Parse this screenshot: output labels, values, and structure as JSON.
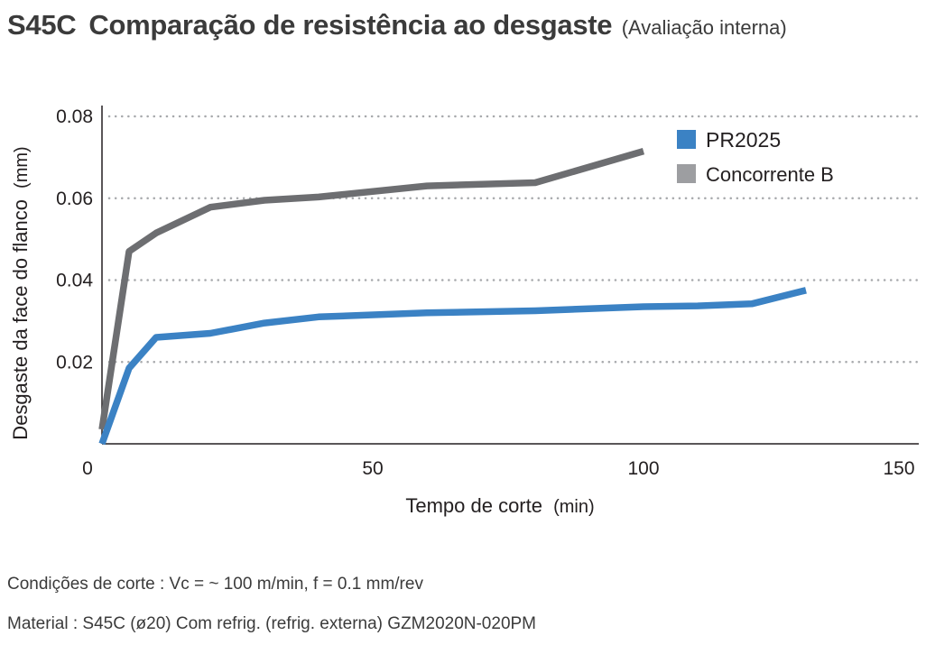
{
  "title": {
    "code": "S45C",
    "main": "Comparação de resistência ao desgaste",
    "sub": "(Avaliação interna)"
  },
  "chart_data": {
    "type": "line",
    "xlabel": "Tempo de corte",
    "xlabel_unit": "(min)",
    "ylabel": "Desgaste da face do flanco",
    "ylabel_unit": "(mm)",
    "xlim": [
      0,
      150
    ],
    "ylim": [
      0,
      0.08
    ],
    "x_ticks": [
      "0",
      "50",
      "100",
      "150"
    ],
    "x_tick_values": [
      0,
      50,
      100,
      150
    ],
    "y_ticks": [
      "0.02",
      "0.04",
      "0.06",
      "0.08"
    ],
    "y_tick_values": [
      0.02,
      0.04,
      0.06,
      0.08
    ],
    "grid": "horizontal dotted",
    "legend_position": "top-right",
    "series": [
      {
        "name": "PR2025",
        "color": "#3b82c4",
        "points": [
          [
            0,
            0
          ],
          [
            5,
            0.0185
          ],
          [
            10,
            0.026
          ],
          [
            20,
            0.027
          ],
          [
            30,
            0.0295
          ],
          [
            40,
            0.031
          ],
          [
            60,
            0.032
          ],
          [
            80,
            0.0325
          ],
          [
            100,
            0.0335
          ],
          [
            110,
            0.0337
          ],
          [
            120,
            0.0342
          ],
          [
            130,
            0.0375
          ]
        ]
      },
      {
        "name": "Concorrente B",
        "color": "#6d6e71",
        "legend_color": "#9d9ea1",
        "points": [
          [
            0,
            0.0035
          ],
          [
            5,
            0.047
          ],
          [
            10,
            0.0515
          ],
          [
            20,
            0.0578
          ],
          [
            30,
            0.0595
          ],
          [
            40,
            0.0603
          ],
          [
            60,
            0.063
          ],
          [
            80,
            0.0638
          ],
          [
            100,
            0.0715
          ]
        ]
      }
    ]
  },
  "notes": {
    "conditions": "Condições de corte : Vc = ~ 100 m/min, f = 0.1 mm/rev",
    "material": "Material : S45C (ø20)  Com refrig. (refrig. externa)  GZM2020N-020PM"
  }
}
